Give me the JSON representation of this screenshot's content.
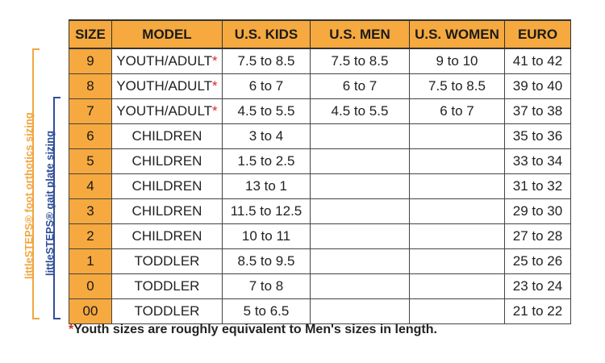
{
  "brackets": {
    "orthotics_label": "littleSTEPS® foot orthotics sizing",
    "gait_plate_label": "littleSTEPS® gait plate sizing",
    "orthotics_color": "#f0a640",
    "gait_plate_color": "#2f4f98"
  },
  "table": {
    "header_color": "#f5a93f",
    "columns": [
      "SIZE",
      "MODEL",
      "U.S. KIDS",
      "U.S. MEN",
      "U.S. WOMEN",
      "EURO"
    ],
    "rows": [
      {
        "size": "9",
        "model": "YOUTH/ADULT",
        "star": "*",
        "kids": "7.5 to 8.5",
        "men": "7.5 to 8.5",
        "women": "9 to 10",
        "euro": "41 to 42"
      },
      {
        "size": "8",
        "model": "YOUTH/ADULT",
        "star": "*",
        "kids": "6 to 7",
        "men": "6 to 7",
        "women": "7.5 to 8.5",
        "euro": "39 to 40"
      },
      {
        "size": "7",
        "model": "YOUTH/ADULT",
        "star": "*",
        "kids": "4.5 to 5.5",
        "men": "4.5 to 5.5",
        "women": "6 to 7",
        "euro": "37 to 38"
      },
      {
        "size": "6",
        "model": "CHILDREN",
        "star": "",
        "kids": "3 to 4",
        "men": "",
        "women": "",
        "euro": "35 to 36"
      },
      {
        "size": "5",
        "model": "CHILDREN",
        "star": "",
        "kids": "1.5 to 2.5",
        "men": "",
        "women": "",
        "euro": "33 to 34"
      },
      {
        "size": "4",
        "model": "CHILDREN",
        "star": "",
        "kids": "13 to 1",
        "men": "",
        "women": "",
        "euro": "31 to 32"
      },
      {
        "size": "3",
        "model": "CHILDREN",
        "star": "",
        "kids": "11.5 to 12.5",
        "men": "",
        "women": "",
        "euro": "29 to 30"
      },
      {
        "size": "2",
        "model": "CHILDREN",
        "star": "",
        "kids": "10 to 11",
        "men": "",
        "women": "",
        "euro": "27 to 28"
      },
      {
        "size": "1",
        "model": "TODDLER",
        "star": "",
        "kids": "8.5 to 9.5",
        "men": "",
        "women": "",
        "euro": "25 to 26"
      },
      {
        "size": "0",
        "model": "TODDLER",
        "star": "",
        "kids": "7 to 8",
        "men": "",
        "women": "",
        "euro": "23 to 24"
      },
      {
        "size": "00",
        "model": "TODDLER",
        "star": "",
        "kids": "5 to 6.5",
        "men": "",
        "women": "",
        "euro": "21 to 22"
      }
    ]
  },
  "footnote": {
    "star": "*",
    "text": "Youth sizes are roughly equivalent to Men's sizes in length."
  }
}
